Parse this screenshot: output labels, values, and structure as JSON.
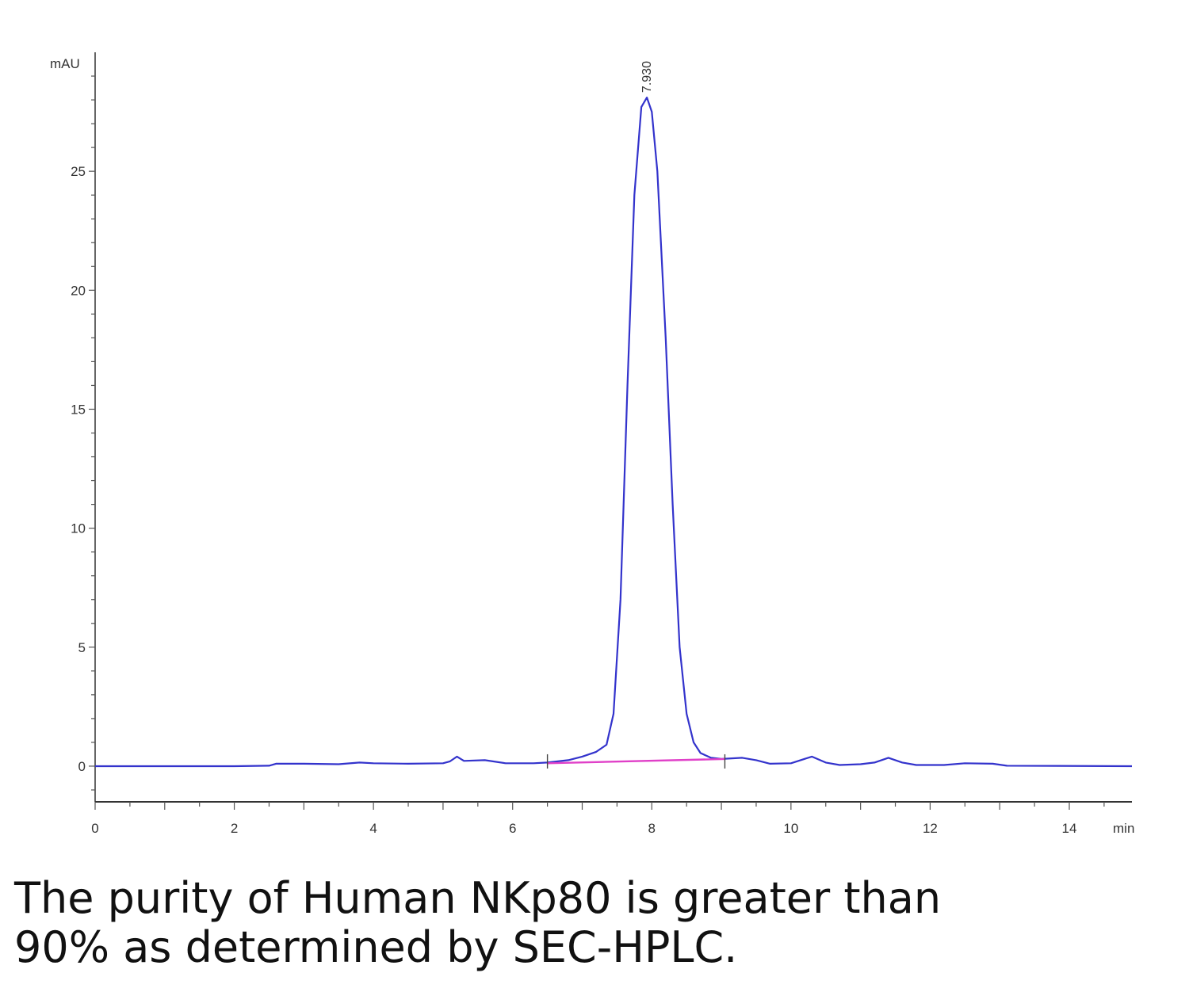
{
  "chart_data": {
    "type": "line",
    "title": "",
    "xlabel": "min",
    "ylabel": "mAU",
    "xlim": [
      0,
      14.9
    ],
    "ylim": [
      -1.5,
      30
    ],
    "x_ticks": [
      "0",
      "2",
      "4",
      "6",
      "8",
      "10",
      "12",
      "14"
    ],
    "y_ticks": [
      "0",
      "5",
      "10",
      "15",
      "20",
      "25"
    ],
    "grid": false,
    "legend": "none",
    "peak_label": {
      "text": "7.930",
      "x": 7.93,
      "y": 28.1
    },
    "series": [
      {
        "color": "#3333cc",
        "points": [
          [
            0,
            0
          ],
          [
            2.0,
            0
          ],
          [
            2.5,
            0.02
          ],
          [
            2.6,
            0.1
          ],
          [
            3.0,
            0.1
          ],
          [
            3.5,
            0.08
          ],
          [
            3.8,
            0.15
          ],
          [
            4.0,
            0.12
          ],
          [
            4.5,
            0.1
          ],
          [
            5.0,
            0.12
          ],
          [
            5.1,
            0.2
          ],
          [
            5.2,
            0.4
          ],
          [
            5.3,
            0.22
          ],
          [
            5.6,
            0.25
          ],
          [
            5.9,
            0.12
          ],
          [
            6.3,
            0.12
          ],
          [
            6.5,
            0.15
          ],
          [
            6.8,
            0.25
          ],
          [
            7.0,
            0.4
          ],
          [
            7.2,
            0.6
          ],
          [
            7.35,
            0.9
          ],
          [
            7.45,
            2.2
          ],
          [
            7.55,
            7.0
          ],
          [
            7.65,
            16.0
          ],
          [
            7.75,
            24.0
          ],
          [
            7.85,
            27.7
          ],
          [
            7.93,
            28.1
          ],
          [
            8.0,
            27.5
          ],
          [
            8.08,
            25.0
          ],
          [
            8.2,
            18.0
          ],
          [
            8.3,
            11.0
          ],
          [
            8.4,
            5.0
          ],
          [
            8.5,
            2.2
          ],
          [
            8.6,
            1.0
          ],
          [
            8.7,
            0.55
          ],
          [
            8.85,
            0.35
          ],
          [
            9.0,
            0.3
          ],
          [
            9.3,
            0.35
          ],
          [
            9.5,
            0.25
          ],
          [
            9.7,
            0.1
          ],
          [
            10.0,
            0.12
          ],
          [
            10.3,
            0.4
          ],
          [
            10.5,
            0.15
          ],
          [
            10.7,
            0.05
          ],
          [
            11.0,
            0.08
          ],
          [
            11.2,
            0.15
          ],
          [
            11.4,
            0.35
          ],
          [
            11.6,
            0.15
          ],
          [
            11.8,
            0.05
          ],
          [
            12.2,
            0.05
          ],
          [
            12.5,
            0.12
          ],
          [
            12.9,
            0.1
          ],
          [
            13.1,
            0.02
          ],
          [
            14.9,
            0
          ]
        ]
      },
      {
        "color": "#e040c8",
        "points": [
          [
            6.5,
            0.12
          ],
          [
            9.05,
            0.3
          ]
        ]
      }
    ],
    "integration_marks": [
      6.5,
      9.05
    ]
  },
  "caption": {
    "line1": "The purity of Human NKp80 is greater than",
    "line2": "90% as determined by SEC-HPLC."
  }
}
